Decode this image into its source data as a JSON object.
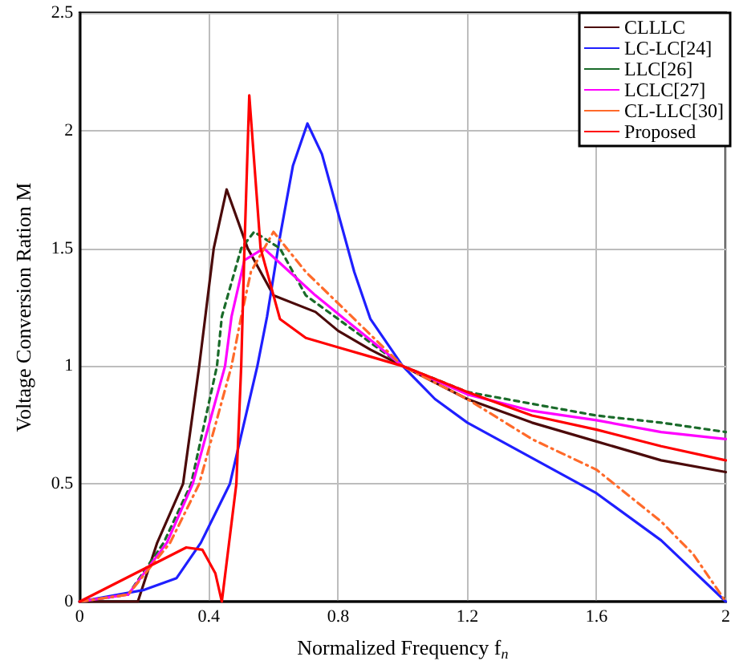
{
  "chart_data": {
    "type": "line",
    "xlabel": "Normalized Frequency f$_{n}$",
    "ylabel": "Voltage Conversion Ration M",
    "xlim": [
      0,
      2
    ],
    "ylim": [
      0,
      2.5
    ],
    "xticks": [
      0,
      0.4,
      0.8,
      1.2,
      1.6,
      2
    ],
    "yticks": [
      0,
      0.5,
      1,
      1.5,
      2,
      2.5
    ],
    "grid": true,
    "legend": "top right",
    "marker": "none",
    "series": [
      {
        "name": "CLLLC",
        "color": "#4b0a0a",
        "line_style": "solid",
        "x": [
          0,
          0.18,
          0.24,
          0.32,
          0.37,
          0.415,
          0.455,
          0.52,
          0.6,
          0.73,
          0.8,
          0.9,
          1.0,
          1.2,
          1.4,
          1.6,
          1.8,
          2.0
        ],
        "values": [
          0,
          0,
          0.25,
          0.5,
          1.0,
          1.5,
          1.75,
          1.5,
          1.3,
          1.23,
          1.15,
          1.07,
          1.0,
          0.86,
          0.76,
          0.68,
          0.6,
          0.55
        ]
      },
      {
        "name": "LC-LC[24]",
        "color": "#1f1fff",
        "line_style": "solid",
        "x": [
          0,
          0.2,
          0.3,
          0.375,
          0.465,
          0.55,
          0.58,
          0.62,
          0.66,
          0.705,
          0.75,
          0.8,
          0.85,
          0.9,
          1.0,
          1.1,
          1.2,
          1.4,
          1.6,
          1.8,
          1.9,
          2.0
        ],
        "values": [
          0,
          0.05,
          0.1,
          0.25,
          0.5,
          1.0,
          1.21,
          1.55,
          1.85,
          2.03,
          1.9,
          1.65,
          1.4,
          1.2,
          1.0,
          0.86,
          0.76,
          0.61,
          0.46,
          0.26,
          0.13,
          0
        ]
      },
      {
        "name": "LLC[26]",
        "color": "#1a6b2a",
        "line_style": "dotted",
        "x": [
          0,
          0.15,
          0.26,
          0.345,
          0.425,
          0.44,
          0.5,
          0.54,
          0.62,
          0.7,
          0.8,
          0.9,
          1.0,
          1.2,
          1.4,
          1.6,
          1.8,
          2.0
        ],
        "values": [
          0,
          0.03,
          0.25,
          0.5,
          1.0,
          1.21,
          1.5,
          1.57,
          1.5,
          1.3,
          1.2,
          1.1,
          1.0,
          0.89,
          0.84,
          0.79,
          0.76,
          0.72
        ]
      },
      {
        "name": "LCLC[27]",
        "color": "#ff00ff",
        "line_style": "solid",
        "x": [
          0,
          0.15,
          0.27,
          0.35,
          0.45,
          0.47,
          0.51,
          0.57,
          0.65,
          0.73,
          0.82,
          0.91,
          1.0,
          1.2,
          1.4,
          1.6,
          1.8,
          2.0
        ],
        "values": [
          0,
          0.03,
          0.25,
          0.5,
          1.0,
          1.21,
          1.45,
          1.5,
          1.4,
          1.3,
          1.2,
          1.1,
          1.0,
          0.88,
          0.81,
          0.77,
          0.72,
          0.69
        ]
      },
      {
        "name": "CL-LLC[30]",
        "color": "#ff6a2a",
        "line_style": "dashed",
        "x": [
          0,
          0.15,
          0.28,
          0.37,
          0.47,
          0.5,
          0.53,
          0.6,
          0.7,
          0.85,
          1.0,
          1.2,
          1.4,
          1.6,
          1.8,
          1.9,
          2.0
        ],
        "values": [
          0,
          0.03,
          0.25,
          0.5,
          1.0,
          1.21,
          1.4,
          1.57,
          1.4,
          1.2,
          1.0,
          0.86,
          0.69,
          0.56,
          0.34,
          0.2,
          0
        ]
      },
      {
        "name": "Proposed",
        "color": "#ff0000",
        "line_style": "solid",
        "x": [
          0,
          0.33,
          0.38,
          0.42,
          0.44,
          0.485,
          0.5,
          0.51,
          0.525,
          0.56,
          0.62,
          0.7,
          0.8,
          0.9,
          1.0,
          1.2,
          1.4,
          1.6,
          1.8,
          2.0
        ],
        "values": [
          0,
          0.23,
          0.22,
          0.12,
          0,
          0.5,
          1.0,
          1.5,
          2.15,
          1.5,
          1.2,
          1.12,
          1.08,
          1.04,
          1.0,
          0.89,
          0.79,
          0.73,
          0.66,
          0.6
        ]
      }
    ]
  }
}
